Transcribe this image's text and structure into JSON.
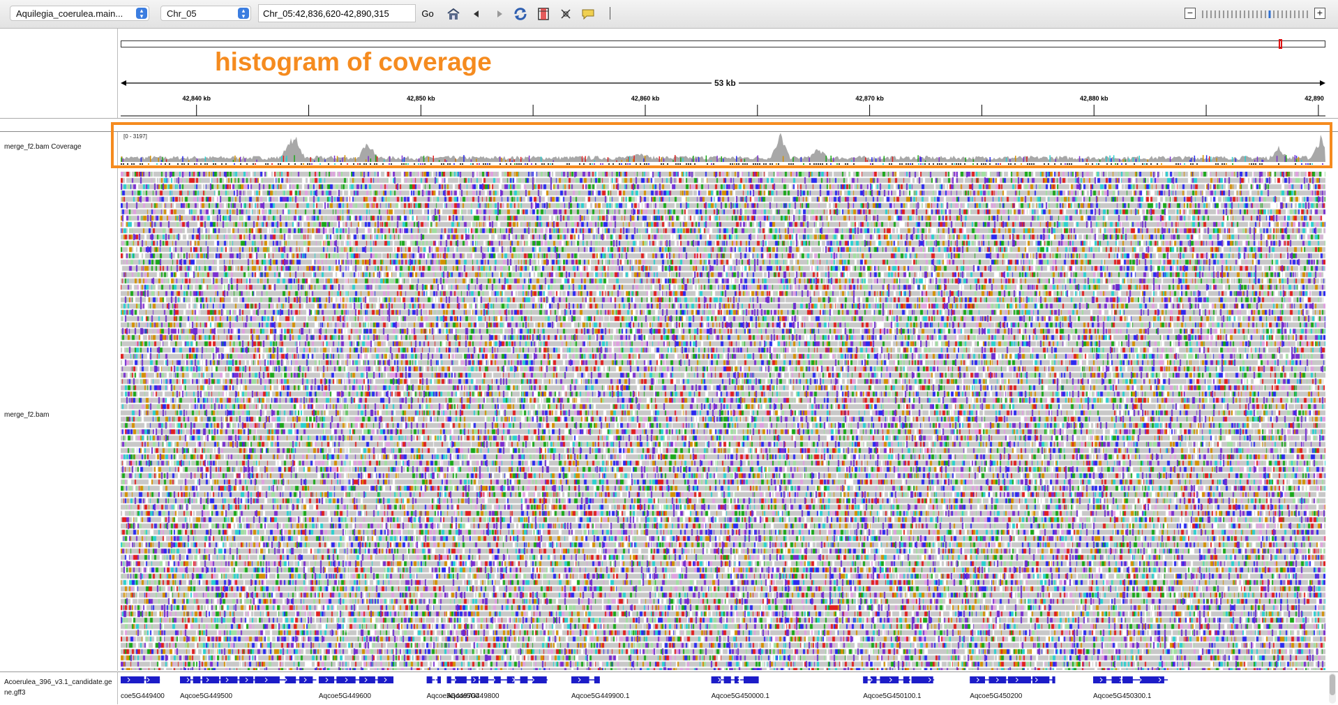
{
  "toolbar": {
    "genome": "Aquilegia_coerulea.main...",
    "chromosome": "Chr_05",
    "locus": "Chr_05:42,836,620-42,890,315",
    "go_label": "Go",
    "icons": [
      "home-icon",
      "back-icon",
      "forward-icon",
      "refresh-icon",
      "region-icon",
      "resize-icon",
      "popup-text-icon"
    ]
  },
  "header": {
    "annotation": "histogram of coverage",
    "span": "53 kb",
    "ruler": {
      "major_ticks_kb": [
        42840,
        42850,
        42860,
        42870,
        42880,
        42890
      ],
      "labels": [
        "42,840 kb",
        "42,850 kb",
        "42,860 kb",
        "42,870 kb",
        "42,880 kb",
        "42,890"
      ]
    }
  },
  "tracks": {
    "coverage_name": "merge_f2.bam Coverage",
    "coverage_range": "[0 - 3197]",
    "alignment_name": "merge_f2.bam",
    "gene_track_name": "Acoerulea_396_v3.1_candidate.gene.gff3"
  },
  "genes": [
    {
      "label": "coe5G449400",
      "start": 0.0,
      "end": 0.033
    },
    {
      "label": "Aqcoe5G449500",
      "start": 0.05,
      "end": 0.165
    },
    {
      "label": "Aqcoe5G449600",
      "start": 0.167,
      "end": 0.23
    },
    {
      "label": "Aqcoe5G449700",
      "start": 0.258,
      "end": 0.27
    },
    {
      "label": "Aqcoe5G449800",
      "start": 0.275,
      "end": 0.36
    },
    {
      "label": "Aqcoe5G449900.1",
      "start": 0.38,
      "end": 0.404
    },
    {
      "label": "Aqcoe5G450000.1",
      "start": 0.498,
      "end": 0.538
    },
    {
      "label": "Aqcoe5G450100.1",
      "start": 0.626,
      "end": 0.686
    },
    {
      "label": "Aqcoe5G450200",
      "start": 0.716,
      "end": 0.788
    },
    {
      "label": "Aqcoe5G450300.1",
      "start": 0.82,
      "end": 0.883
    }
  ],
  "colors": {
    "highlight": "#f58b1f",
    "read_gray": "#c8c8c8",
    "gene_blue": "#1c1cc8",
    "base_colors": [
      "#1aa81a",
      "#2a2af0",
      "#d49000",
      "#e02020",
      "#7b2fd0",
      "#2ad0d0"
    ]
  }
}
